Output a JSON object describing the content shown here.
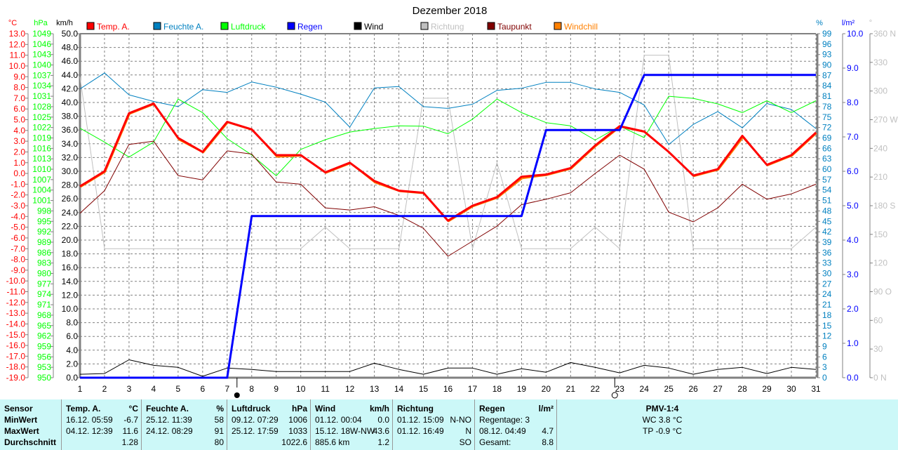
{
  "chart_data": {
    "type": "line",
    "title": "Dezember 2018",
    "x": [
      1,
      2,
      3,
      4,
      5,
      6,
      7,
      8,
      9,
      10,
      11,
      12,
      13,
      14,
      15,
      16,
      17,
      18,
      19,
      20,
      21,
      22,
      23,
      24,
      25,
      26,
      27,
      28,
      29,
      30,
      31
    ],
    "xlabel": "",
    "legend_position": "top",
    "grid": true,
    "series": [
      {
        "name": "Temp. A.",
        "axis": "temp",
        "color": "#ff0000",
        "width": 3,
        "values": [
          -1.2,
          0.2,
          5.6,
          6.5,
          3.3,
          2.0,
          4.8,
          4.1,
          1.7,
          1.7,
          0.1,
          1.0,
          -0.7,
          -1.6,
          -1.8,
          -4.4,
          -3.0,
          -2.2,
          -0.3,
          -0.1,
          0.5,
          2.6,
          4.4,
          3.9,
          2.0,
          -0.2,
          0.4,
          3.5,
          0.8,
          1.7,
          3.8
        ]
      },
      {
        "name": "Feuchte A.",
        "axis": "humidity",
        "color": "#0080c0",
        "width": 1,
        "values": [
          83.1,
          87.7,
          81.4,
          79.5,
          78.0,
          82.9,
          82.1,
          85.1,
          83.6,
          81.6,
          79.3,
          72.1,
          83.4,
          83.8,
          78.0,
          77.5,
          78.7,
          82.7,
          83.3,
          85.0,
          85.0,
          83.1,
          82.1,
          78.5,
          67.1,
          72.9,
          76.6,
          71.9,
          78.9,
          77.2,
          71.7
        ]
      },
      {
        "name": "Luftdruck",
        "axis": "pressure",
        "color": "#00ff00",
        "width": 1,
        "values": [
          1021.8,
          1017.8,
          1013.5,
          1017.8,
          1030.2,
          1026.3,
          1018.8,
          1014.1,
          1008.1,
          1015.7,
          1018.5,
          1020.7,
          1021.7,
          1022.5,
          1022.4,
          1020.2,
          1024.4,
          1030.2,
          1026.3,
          1023.4,
          1022.5,
          1018.4,
          1022.4,
          1019.1,
          1031.0,
          1030.4,
          1028.8,
          1026.3,
          1029.7,
          1026.3,
          1029.7
        ]
      },
      {
        "name": "Regen",
        "axis": "rain",
        "color": "#0000ff",
        "width": 3,
        "cumulative": true,
        "values": [
          0,
          0,
          0,
          0,
          0,
          0,
          0,
          4.7,
          4.7,
          4.7,
          4.7,
          4.7,
          4.7,
          4.7,
          4.7,
          4.7,
          4.7,
          4.7,
          4.7,
          7.2,
          7.2,
          7.2,
          7.2,
          8.8,
          8.8,
          8.8,
          8.8,
          8.8,
          8.8,
          8.8,
          8.8
        ]
      },
      {
        "name": "Wind",
        "axis": "wind",
        "color": "#000000",
        "width": 1,
        "values": [
          0.5,
          0.6,
          2.6,
          1.8,
          1.5,
          0.2,
          1.4,
          1.2,
          0.9,
          0.9,
          0.9,
          0.9,
          2.1,
          1.2,
          0.5,
          1.4,
          1.4,
          0.5,
          1.3,
          0.8,
          2.2,
          1.5,
          0.7,
          1.8,
          1.4,
          0.5,
          1.2,
          1.5,
          0.6,
          1.5,
          1.2
        ]
      },
      {
        "name": "Richtung",
        "axis": "direction",
        "color": "#c0c0c0",
        "width": 1,
        "values": [
          315,
          135,
          135,
          135,
          135,
          135,
          135,
          135,
          135,
          135,
          157.5,
          135,
          135,
          135,
          292.5,
          292.5,
          135,
          225,
          135,
          135,
          135,
          157.5,
          135,
          337.5,
          337.5,
          135,
          135,
          135,
          135,
          135,
          157.5
        ]
      },
      {
        "name": "Taupunkt",
        "axis": "temp",
        "color": "#800000",
        "width": 1,
        "values": [
          -3.7,
          -1.6,
          2.7,
          3.0,
          -0.2,
          -0.6,
          2.1,
          1.8,
          -0.8,
          -1.0,
          -3.2,
          -3.4,
          -3.1,
          -3.9,
          -5.1,
          -7.7,
          -6.3,
          -4.9,
          -2.9,
          -2.4,
          -1.8,
          0.0,
          1.7,
          0.4,
          -3.6,
          -4.5,
          -3.2,
          -1.0,
          -2.4,
          -1.9,
          -1.0
        ]
      },
      {
        "name": "Windchill",
        "axis": "temp",
        "color": "#ff8000",
        "width": 2,
        "values": [
          -1.2,
          0.2,
          5.6,
          6.5,
          3.2,
          2.0,
          4.8,
          4.1,
          1.6,
          1.7,
          0.1,
          1.0,
          -0.8,
          -1.6,
          -1.8,
          -4.4,
          -3.0,
          -2.2,
          -0.4,
          -0.1,
          0.5,
          2.6,
          4.4,
          3.9,
          2.0,
          -0.2,
          0.4,
          3.4,
          0.8,
          1.7,
          3.8
        ]
      }
    ],
    "axes": {
      "temp": {
        "unit": "°C",
        "color": "#ff0000",
        "range": [
          -19,
          13
        ],
        "step": 1,
        "side": "left"
      },
      "pressure": {
        "unit": "hPa",
        "color": "#00ff00",
        "range": [
          950,
          1049
        ],
        "step": 3,
        "side": "left"
      },
      "wind": {
        "unit": "km/h",
        "color": "#000000",
        "range": [
          0,
          50
        ],
        "step": 2,
        "side": "left"
      },
      "humidity": {
        "unit": "%",
        "color": "#0080c0",
        "range": [
          0,
          99
        ],
        "step": 3,
        "side": "right"
      },
      "rain": {
        "unit": "l/m²",
        "color": "#0000ff",
        "range": [
          0,
          10
        ],
        "step": 1,
        "side": "right"
      },
      "direction": {
        "unit": "°",
        "color": "#c0c0c0",
        "range": [
          0,
          360
        ],
        "step": 30,
        "side": "right",
        "labels": {
          "0": "0 N",
          "90": "90 O",
          "180": "180 S",
          "270": "270 W",
          "360": "360 N"
        }
      }
    },
    "moon_phases": [
      {
        "day": 7.4,
        "phase": "new-moon"
      },
      {
        "day": 22.8,
        "phase": "full-moon"
      }
    ]
  },
  "stats": {
    "sensor": {
      "header": "Sensor",
      "min": "MinWert",
      "max": "MaxWert",
      "avg": "Durchschnitt"
    },
    "temp": {
      "header": "Temp. A.",
      "unit": "°C",
      "min_time": "16.12.  05:59",
      "min": "-6.7",
      "max_time": "04.12.  12:39",
      "max": "11.6",
      "avg": "1.28"
    },
    "humidity": {
      "header": "Feuchte A.",
      "unit": "%",
      "min_time": "25.12.  11:39",
      "min": "58",
      "max_time": "24.12.  08:29",
      "max": "91",
      "avg": "80"
    },
    "pressure": {
      "header": "Luftdruck",
      "unit": "hPa",
      "min_time": "09.12.  07:29",
      "min": "1006",
      "max_time": "25.12.  17:59",
      "max": "1033",
      "avg": "1022.6"
    },
    "wind": {
      "header": "Wind",
      "unit": "km/h",
      "min_time": "01.12.  00:04",
      "min": "0.0",
      "max_time": "15.12.  18W-NW",
      "max": "43.6",
      "avg_label": "885.6 km",
      "avg": "1.2"
    },
    "direction": {
      "header": "Richtung",
      "min_time": "01.12.  15:09",
      "min": "N-NO",
      "max_time": "01.12.  16:49",
      "max": "N",
      "avg": "SO"
    },
    "rain": {
      "header": "Regen",
      "unit": "l/m²",
      "min_label": "Regentage: 3",
      "max_time": "08.12.  04:49",
      "max": "4.7",
      "avg_label": "Gesamt:",
      "avg": "8.8"
    },
    "pmv": {
      "header": "PMV-1:4",
      "wc": "WC 3.8 °C",
      "tp": "TP -0.9 °C"
    }
  }
}
